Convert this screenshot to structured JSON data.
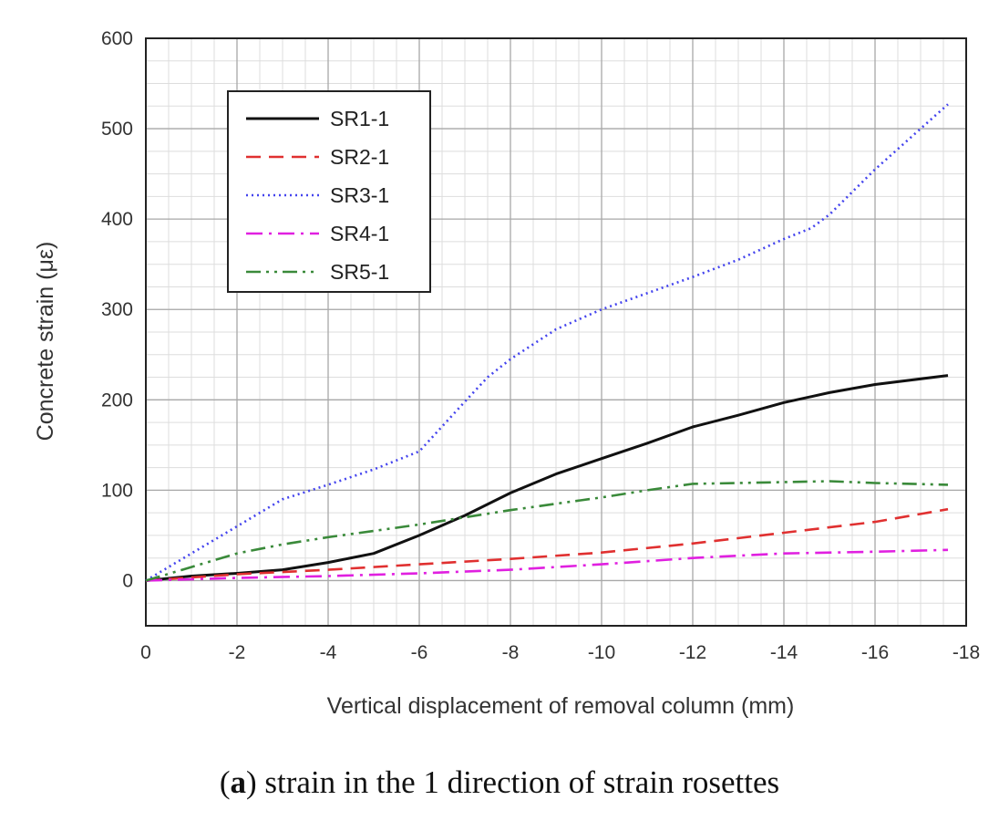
{
  "chart_data": {
    "type": "line",
    "xlabel": "Vertical displacement of removal column (mm)",
    "ylabel": "Concrete strain (με)",
    "xlim": [
      0,
      -18
    ],
    "ylim": [
      -50,
      600
    ],
    "xticks": [
      0,
      -2,
      -4,
      -6,
      -8,
      -10,
      -12,
      -14,
      -16,
      -18
    ],
    "xtick_labels": [
      "0",
      "-2",
      "-4",
      "-6",
      "-8",
      "-10",
      "-12",
      "-14",
      "-16",
      "-18"
    ],
    "yticks": [
      0,
      100,
      200,
      300,
      400,
      500,
      600
    ],
    "ytick_labels": [
      "0",
      "100",
      "200",
      "300",
      "400",
      "500",
      "600"
    ],
    "grid": true,
    "legend_position": "top-left",
    "series": [
      {
        "name": "SR1-1",
        "color": "#111111",
        "dash": "solid",
        "points": [
          [
            0,
            0
          ],
          [
            -1,
            5
          ],
          [
            -2,
            8
          ],
          [
            -3,
            12
          ],
          [
            -4,
            20
          ],
          [
            -5,
            30
          ],
          [
            -6,
            50
          ],
          [
            -7,
            72
          ],
          [
            -8,
            97
          ],
          [
            -9,
            118
          ],
          [
            -10,
            135
          ],
          [
            -11,
            152
          ],
          [
            -12,
            170
          ],
          [
            -13,
            183
          ],
          [
            -14,
            197
          ],
          [
            -15,
            208
          ],
          [
            -16,
            217
          ],
          [
            -17.6,
            227
          ]
        ]
      },
      {
        "name": "SR2-1",
        "color": "#e03030",
        "dash": "dashed",
        "points": [
          [
            0,
            0
          ],
          [
            -2,
            7
          ],
          [
            -4,
            12
          ],
          [
            -6,
            18
          ],
          [
            -8,
            24
          ],
          [
            -10,
            31
          ],
          [
            -12,
            41
          ],
          [
            -14,
            53
          ],
          [
            -16,
            65
          ],
          [
            -17.6,
            79
          ]
        ]
      },
      {
        "name": "SR3-1",
        "color": "#4444ee",
        "dash": "dotted",
        "points": [
          [
            0,
            0
          ],
          [
            -1,
            30
          ],
          [
            -2,
            60
          ],
          [
            -3,
            90
          ],
          [
            -4,
            106
          ],
          [
            -5,
            123
          ],
          [
            -6,
            143
          ],
          [
            -7,
            198
          ],
          [
            -7.5,
            225
          ],
          [
            -8,
            245
          ],
          [
            -9,
            278
          ],
          [
            -10,
            300
          ],
          [
            -11,
            318
          ],
          [
            -12,
            336
          ],
          [
            -13,
            355
          ],
          [
            -14,
            378
          ],
          [
            -14.6,
            390
          ],
          [
            -15,
            405
          ],
          [
            -16,
            455
          ],
          [
            -17.6,
            527
          ]
        ]
      },
      {
        "name": "SR4-1",
        "color": "#e020e0",
        "dash": "dashdot",
        "points": [
          [
            0,
            0
          ],
          [
            -2,
            3
          ],
          [
            -4,
            5
          ],
          [
            -6,
            8
          ],
          [
            -8,
            12
          ],
          [
            -10,
            18
          ],
          [
            -12,
            25
          ],
          [
            -14,
            30
          ],
          [
            -16,
            32
          ],
          [
            -17.6,
            34
          ]
        ]
      },
      {
        "name": "SR5-1",
        "color": "#3a8a3a",
        "dash": "dashdotdot",
        "points": [
          [
            0,
            0
          ],
          [
            -1,
            15
          ],
          [
            -2,
            30
          ],
          [
            -3,
            40
          ],
          [
            -4,
            48
          ],
          [
            -5,
            55
          ],
          [
            -6,
            62
          ],
          [
            -7,
            70
          ],
          [
            -8,
            78
          ],
          [
            -9,
            85
          ],
          [
            -10,
            92
          ],
          [
            -11,
            100
          ],
          [
            -12,
            107
          ],
          [
            -13,
            108
          ],
          [
            -14,
            109
          ],
          [
            -15,
            110
          ],
          [
            -16,
            108
          ],
          [
            -17.6,
            106
          ]
        ]
      }
    ]
  },
  "caption": {
    "letter": "a",
    "text": " strain in the 1 direction of strain rosettes"
  }
}
